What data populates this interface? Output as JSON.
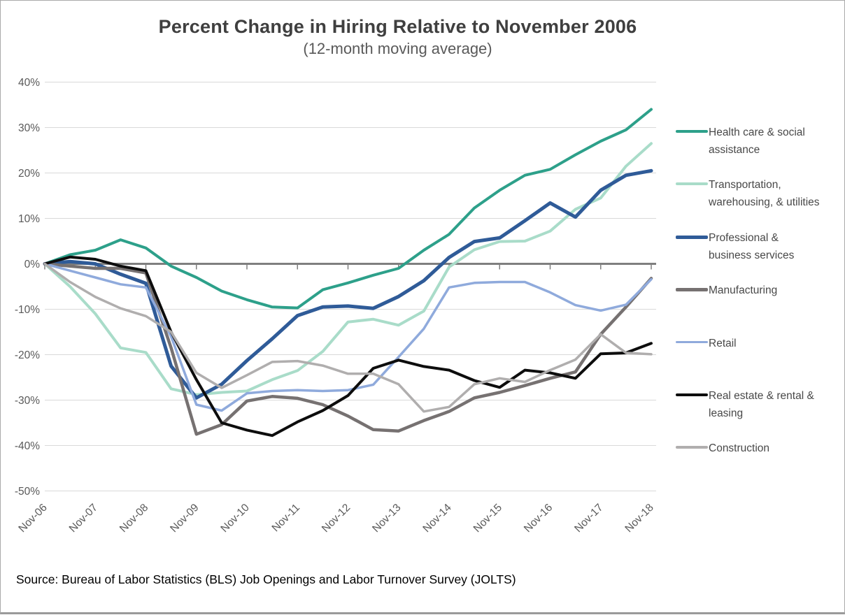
{
  "page": {
    "title": "Percent Change in Hiring Relative to November 2006",
    "subtitle": "(12-month moving average)",
    "source": "Source: Bureau of Labor Statistics (BLS) Job Openings and Labor Turnover Survey (JOLTS)"
  },
  "chart_data": {
    "type": "line",
    "title": "Percent Change in Hiring Relative to November 2006",
    "subtitle": "(12-month moving average)",
    "xlabel": "",
    "ylabel": "",
    "ylim": [
      -50,
      40
    ],
    "y_grid_step": 10,
    "grid": true,
    "legend_position": "right",
    "gridline_color": "#d9d9d9",
    "zero_axis_color": "#7f7f7f",
    "axis_label_color": "#595959",
    "y_tick_labels": [
      "40%",
      "30%",
      "20%",
      "10%",
      "0%",
      "-10%",
      "-20%",
      "-30%",
      "-40%",
      "-50%"
    ],
    "x_tick_labels": [
      "Nov-06",
      "Nov-07",
      "Nov-08",
      "Nov-09",
      "Nov-10",
      "Nov-11",
      "Nov-12",
      "Nov-13",
      "Nov-14",
      "Nov-15",
      "Nov-16",
      "Nov-17",
      "Nov-18"
    ],
    "categories": [
      "Nov-06",
      "May-07",
      "Nov-07",
      "May-08",
      "Nov-08",
      "May-09",
      "Nov-09",
      "May-10",
      "Nov-10",
      "May-11",
      "Nov-11",
      "May-12",
      "Nov-12",
      "May-13",
      "Nov-13",
      "May-14",
      "Nov-14",
      "May-15",
      "Nov-15",
      "May-16",
      "Nov-16",
      "May-17",
      "Nov-17",
      "May-18",
      "Nov-18"
    ],
    "values_unit": "percent",
    "series": [
      {
        "name": "Health care & social assistance",
        "color": "#2da08a",
        "stroke_width": 4,
        "values": [
          0,
          2,
          3,
          5.3,
          3.5,
          -0.5,
          -3,
          -6,
          -7.9,
          -9.5,
          -9.7,
          -5.7,
          -4.2,
          -2.5,
          -1,
          3,
          6.5,
          12.3,
          16.2,
          19.5,
          20.8,
          24,
          27,
          29.5,
          34
        ]
      },
      {
        "name": "Transportation, warehousing, & utilities",
        "color": "#a9dcc9",
        "stroke_width": 4,
        "values": [
          0,
          -5,
          -11,
          -18.5,
          -19.5,
          -27.5,
          -28.8,
          -28.3,
          -28,
          -25.5,
          -23.5,
          -19.3,
          -12.8,
          -12.2,
          -13.5,
          -10.4,
          -0.7,
          3.1,
          4.9,
          5,
          7.2,
          12,
          14.5,
          21.5,
          26.5
        ]
      },
      {
        "name": "Professional & business services",
        "color": "#2f5b98",
        "stroke_width": 5,
        "values": [
          0,
          0.5,
          0,
          -2.3,
          -4.3,
          -22.5,
          -29.5,
          -26.5,
          -21.3,
          -16.5,
          -11.4,
          -9.5,
          -9.3,
          -9.8,
          -7.2,
          -3.7,
          1.4,
          4.9,
          5.7,
          9.5,
          13.4,
          10.3,
          16.2,
          19.5,
          20.5
        ]
      },
      {
        "name": "Manufacturing",
        "color": "#767171",
        "stroke_width": 4.5,
        "values": [
          0,
          -0.5,
          -1,
          -1,
          -2,
          -18.5,
          -37.5,
          -35.4,
          -30.2,
          -29.2,
          -29.6,
          -31,
          -33.5,
          -36.5,
          -36.8,
          -34.5,
          -32.5,
          -29.5,
          -28.3,
          -26.8,
          -25.2,
          -23.8,
          -15.5,
          -9.5,
          -3.2
        ]
      },
      {
        "name": "Retail",
        "color": "#8faadc",
        "stroke_width": 3.5,
        "values": [
          0,
          -1.5,
          -3,
          -4.5,
          -5.2,
          -16,
          -31,
          -32.3,
          -28.5,
          -28,
          -27.8,
          -28,
          -27.8,
          -26.6,
          -20.5,
          -14.3,
          -5.2,
          -4.2,
          -4,
          -4,
          -6.3,
          -9.1,
          -10.3,
          -9,
          -3.4
        ]
      },
      {
        "name": "Real estate & rental & leasing",
        "color": "#0d0d0d",
        "stroke_width": 4,
        "values": [
          0,
          1.5,
          1,
          -0.5,
          -1.5,
          -15,
          -25.5,
          -35,
          -36.6,
          -37.8,
          -34.8,
          -32.3,
          -29,
          -23,
          -21.2,
          -22.6,
          -23.4,
          -25.7,
          -27.2,
          -23.4,
          -24,
          -25.2,
          -19.8,
          -19.6,
          -17.5
        ]
      },
      {
        "name": "Construction",
        "color": "#b0aeae",
        "stroke_width": 3.5,
        "values": [
          0,
          -4,
          -7.3,
          -9.8,
          -11.5,
          -15,
          -24,
          -27.3,
          -24.5,
          -21.6,
          -21.4,
          -22.4,
          -24.2,
          -24.2,
          -26.5,
          -32.5,
          -31.5,
          -26.5,
          -25.2,
          -26,
          -23.4,
          -21.1,
          -15.5,
          -19.6,
          -19.9
        ]
      }
    ]
  }
}
